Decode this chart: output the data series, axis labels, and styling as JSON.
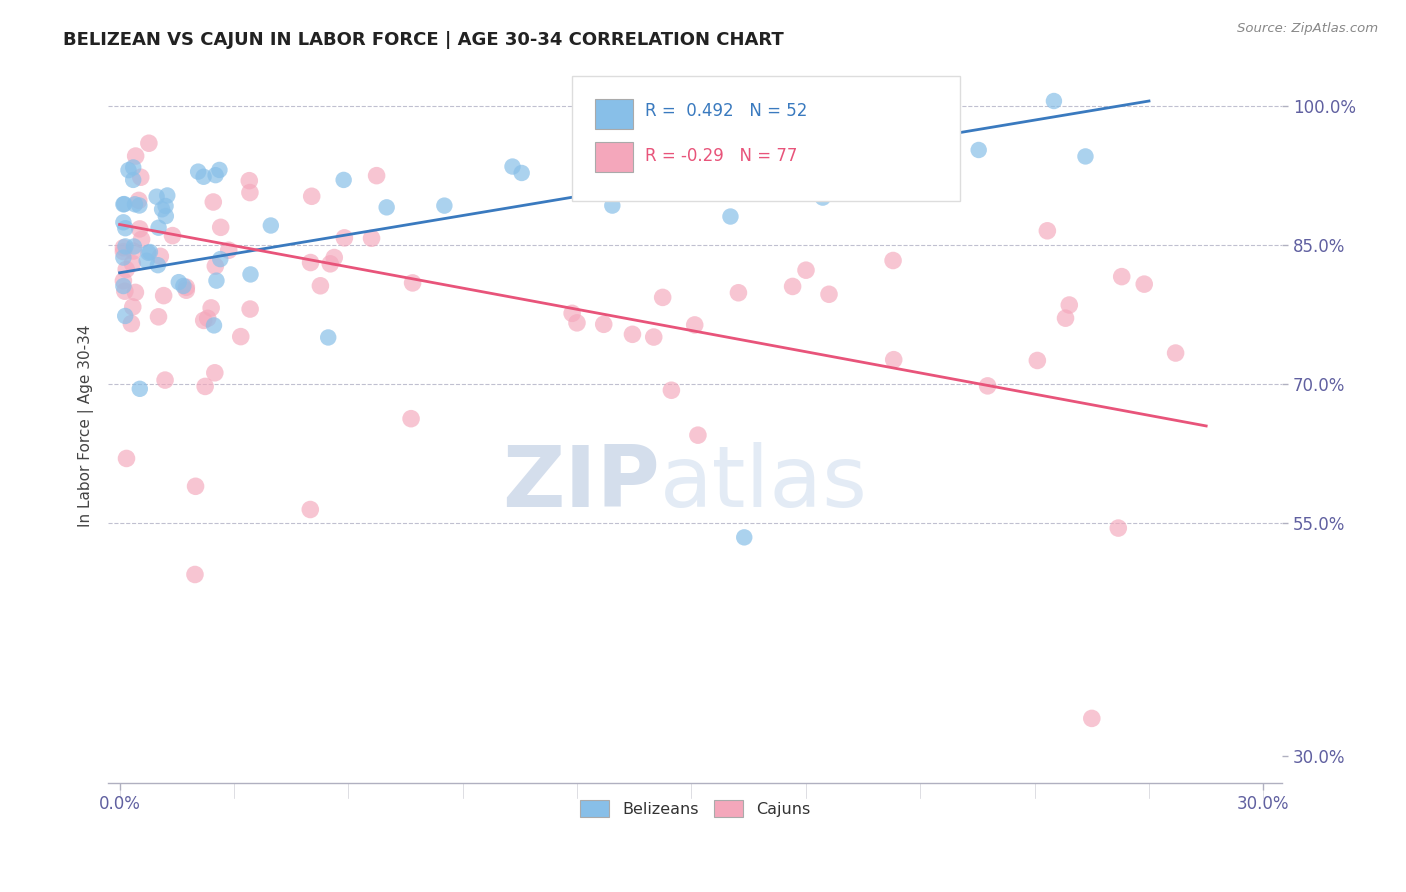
{
  "title": "BELIZEAN VS CAJUN IN LABOR FORCE | AGE 30-34 CORRELATION CHART",
  "source_text": "Source: ZipAtlas.com",
  "ylabel": "In Labor Force | Age 30-34",
  "xlim": [
    -0.003,
    0.305
  ],
  "ylim": [
    0.27,
    1.04
  ],
  "ytick_vals": [
    0.3,
    0.55,
    0.7,
    0.85,
    1.0
  ],
  "xtick_left_label": "0.0%",
  "xtick_right_label": "30.0%",
  "belizean_R": 0.492,
  "belizean_N": 52,
  "cajun_R": -0.29,
  "cajun_N": 77,
  "belizean_color": "#88bfe8",
  "cajun_color": "#f4a7bb",
  "belizean_line_color": "#3a7abf",
  "cajun_line_color": "#e8547a",
  "axis_color": "#a0a0b0",
  "tick_color": "#6060a0",
  "title_color": "#222222",
  "source_color": "#888888"
}
